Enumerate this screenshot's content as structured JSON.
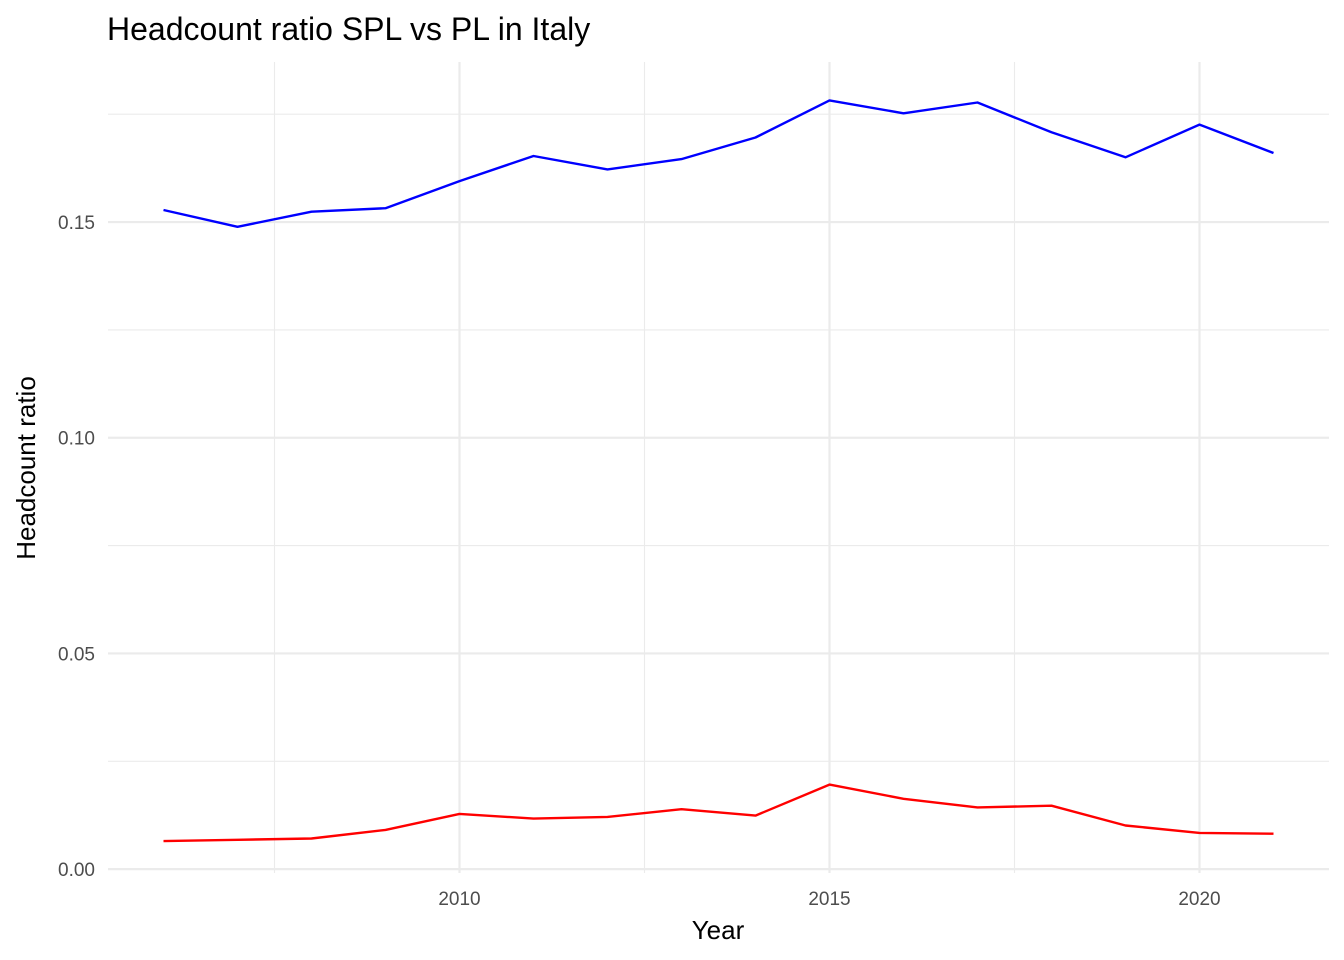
{
  "chart_data": {
    "type": "line",
    "title": "Headcount ratio SPL vs PL in Italy",
    "xlabel": "Year",
    "ylabel": "Headcount ratio",
    "x": [
      2006,
      2007,
      2008,
      2009,
      2010,
      2011,
      2012,
      2013,
      2014,
      2015,
      2016,
      2017,
      2018,
      2019,
      2020,
      2021
    ],
    "series": [
      {
        "color": "#0000ff",
        "values": [
          0.1528,
          0.1489,
          0.1524,
          0.1532,
          0.1595,
          0.1653,
          0.1622,
          0.1646,
          0.1696,
          0.1782,
          0.1752,
          0.1777,
          0.1708,
          0.165,
          0.1726,
          0.166
        ]
      },
      {
        "color": "#ff0000",
        "values": [
          0.0065,
          0.0068,
          0.0071,
          0.0091,
          0.0128,
          0.0117,
          0.0121,
          0.0139,
          0.0124,
          0.0196,
          0.0163,
          0.0143,
          0.0147,
          0.0101,
          0.0084,
          0.0082
        ]
      }
    ],
    "xlim": [
      2005.25,
      2021.75
    ],
    "ylim": [
      -0.0009,
      0.1871
    ],
    "x_ticks": [
      2010,
      2015,
      2020
    ],
    "x_tick_labels": [
      "2010",
      "2015",
      "2020"
    ],
    "y_ticks": [
      0.0,
      0.05,
      0.1,
      0.15
    ],
    "y_tick_labels": [
      "0.00",
      "0.05",
      "0.10",
      "0.15"
    ],
    "grid": true,
    "legend": "none"
  }
}
